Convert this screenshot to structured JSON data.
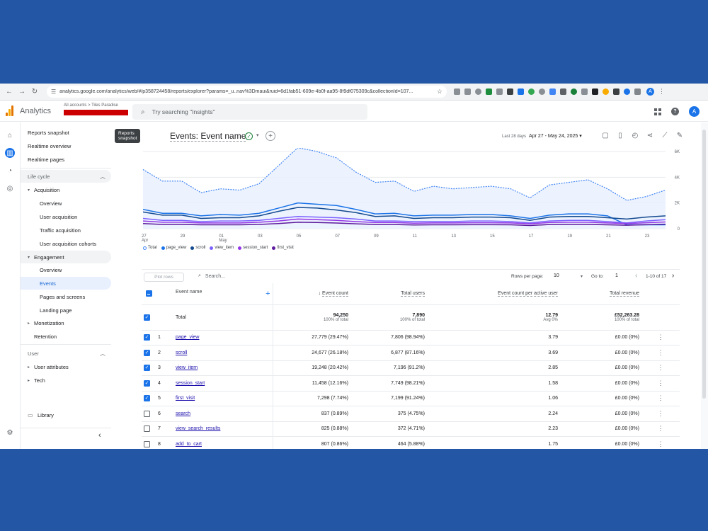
{
  "browser": {
    "url": "analytics.google.com/analytics/web/#/p358724458/reports/explorer?params=_u..nav%3Dmaui&ruid=6d1fab51-609e-4b0f-aa95-8f9df075309c&collectionId=107...",
    "profile_initial": "A"
  },
  "app": {
    "title": "Analytics",
    "account_crumb": "All accounts > Tiles Paradise",
    "search_placeholder": "Try searching \"Insights\"",
    "user_initial": "A"
  },
  "sidenav": {
    "tooltip": "Reports snapshot",
    "items": [
      {
        "label": "Reports snapshot"
      },
      {
        "label": "Realtime overview"
      },
      {
        "label": "Realtime pages"
      },
      {
        "label": "Life cycle"
      },
      {
        "label": "Acquisition"
      },
      {
        "label": "Overview"
      },
      {
        "label": "User acquisition"
      },
      {
        "label": "Traffic acquisition"
      },
      {
        "label": "User acquisition cohorts"
      },
      {
        "label": "Engagement"
      },
      {
        "label": "Overview"
      },
      {
        "label": "Events"
      },
      {
        "label": "Pages and screens"
      },
      {
        "label": "Landing page"
      },
      {
        "label": "Monetization"
      },
      {
        "label": "Retention"
      },
      {
        "label": "User"
      },
      {
        "label": "User attributes"
      },
      {
        "label": "Tech"
      },
      {
        "label": "Library"
      }
    ]
  },
  "report": {
    "title": "Events: Event name",
    "date_label": "Last 28 days",
    "date_range": "Apr 27 - May 24, 2025"
  },
  "chart_data": {
    "type": "line",
    "x": [
      "27 Apr",
      "28",
      "29",
      "30",
      "01 May",
      "02",
      "03",
      "04",
      "05",
      "06",
      "07",
      "08",
      "09",
      "10",
      "11",
      "12",
      "13",
      "14",
      "15",
      "16",
      "17",
      "18",
      "19",
      "20",
      "21",
      "22",
      "23",
      "24"
    ],
    "x_tick_labels": [
      {
        "top": "27",
        "bottom": "Apr"
      },
      {
        "top": "29",
        "bottom": ""
      },
      {
        "top": "01",
        "bottom": "May"
      },
      {
        "top": "03",
        "bottom": ""
      },
      {
        "top": "05",
        "bottom": ""
      },
      {
        "top": "07",
        "bottom": ""
      },
      {
        "top": "09",
        "bottom": ""
      },
      {
        "top": "11",
        "bottom": ""
      },
      {
        "top": "13",
        "bottom": ""
      },
      {
        "top": "15",
        "bottom": ""
      },
      {
        "top": "17",
        "bottom": ""
      },
      {
        "top": "19",
        "bottom": ""
      },
      {
        "top": "21",
        "bottom": ""
      },
      {
        "top": "23",
        "bottom": ""
      }
    ],
    "y_ticks": [
      "6K",
      "4K",
      "2K",
      "0"
    ],
    "ylim": [
      0,
      6000
    ],
    "grid": true,
    "legend_position": "bottom-left",
    "series": [
      {
        "name": "Total",
        "color": "#4285f4",
        "dashed": true,
        "values": [
          4600,
          3700,
          3700,
          2800,
          3100,
          3000,
          3500,
          4900,
          6300,
          6000,
          5500,
          4400,
          3600,
          3700,
          2900,
          3300,
          3100,
          3200,
          3300,
          3100,
          2400,
          3400,
          3600,
          3800,
          3100,
          2200,
          2500,
          3000
        ]
      },
      {
        "name": "page_view",
        "color": "#1a73e8",
        "values": [
          1500,
          1200,
          1200,
          1000,
          1100,
          1050,
          1200,
          1600,
          2000,
          1900,
          1800,
          1500,
          1150,
          1200,
          1000,
          1050,
          1050,
          1100,
          1100,
          1000,
          800,
          1050,
          1150,
          1150,
          1000,
          300,
          300,
          300
        ]
      },
      {
        "name": "scroll",
        "color": "#12498f",
        "values": [
          1300,
          1050,
          1050,
          800,
          850,
          850,
          1000,
          1350,
          1650,
          1600,
          1450,
          1250,
          950,
          1000,
          800,
          850,
          850,
          900,
          900,
          850,
          650,
          900,
          950,
          950,
          850,
          750,
          900,
          1000
        ]
      },
      {
        "name": "view_item",
        "color": "#7b61ff",
        "values": [
          800,
          650,
          650,
          550,
          600,
          600,
          650,
          800,
          950,
          900,
          850,
          750,
          600,
          600,
          550,
          550,
          550,
          600,
          600,
          550,
          450,
          600,
          650,
          650,
          550,
          450,
          600,
          700
        ]
      },
      {
        "name": "session_start",
        "color": "#9334e6",
        "values": [
          600,
          500,
          500,
          450,
          450,
          450,
          500,
          600,
          750,
          700,
          650,
          550,
          480,
          480,
          430,
          450,
          450,
          460,
          460,
          450,
          380,
          480,
          500,
          500,
          450,
          400,
          460,
          520
        ]
      },
      {
        "name": "first_visit",
        "color": "#5e1b9e",
        "values": [
          400,
          330,
          330,
          300,
          300,
          300,
          330,
          400,
          500,
          480,
          440,
          380,
          320,
          320,
          290,
          300,
          300,
          310,
          310,
          300,
          250,
          320,
          330,
          330,
          300,
          270,
          310,
          350
        ]
      }
    ]
  },
  "table": {
    "plot_rows": "Plot rows",
    "search_placeholder": "Search...",
    "rows_per_page_label": "Rows per page:",
    "rows_per_page": "10",
    "goto_label": "Go to:",
    "goto_value": "1",
    "pager_text": "1-10 of 17",
    "columns": {
      "event_name": "Event name",
      "event_count": "Event count",
      "total_users": "Total users",
      "per_user": "Event count per active user",
      "revenue": "Total revenue"
    },
    "totals": {
      "label": "Total",
      "event_count": "94,250",
      "event_count_sub": "100% of total",
      "total_users": "7,890",
      "total_users_sub": "100% of total",
      "per_user": "12.79",
      "per_user_sub": "Avg 0%",
      "revenue": "£52,263.28",
      "revenue_sub": "100% of total"
    },
    "rows": [
      {
        "n": "1",
        "name": "page_view",
        "checked": true,
        "count": "27,779 (29.47%)",
        "users": "7,806 (98.94%)",
        "per": "3.79",
        "rev": "£0.00 (0%)"
      },
      {
        "n": "2",
        "name": "scroll",
        "checked": true,
        "count": "24,677 (26.18%)",
        "users": "6,877 (87.16%)",
        "per": "3.69",
        "rev": "£0.00 (0%)"
      },
      {
        "n": "3",
        "name": "view_item",
        "checked": true,
        "count": "19,248 (20.42%)",
        "users": "7,196 (91.2%)",
        "per": "2.85",
        "rev": "£0.00 (0%)"
      },
      {
        "n": "4",
        "name": "session_start",
        "checked": true,
        "count": "11,458 (12.16%)",
        "users": "7,749 (98.21%)",
        "per": "1.58",
        "rev": "£0.00 (0%)"
      },
      {
        "n": "5",
        "name": "first_visit",
        "checked": true,
        "count": "7,298 (7.74%)",
        "users": "7,199 (91.24%)",
        "per": "1.06",
        "rev": "£0.00 (0%)"
      },
      {
        "n": "6",
        "name": "search",
        "checked": false,
        "count": "837 (0.89%)",
        "users": "375 (4.75%)",
        "per": "2.24",
        "rev": "£0.00 (0%)"
      },
      {
        "n": "7",
        "name": "view_search_results",
        "checked": false,
        "count": "825 (0.88%)",
        "users": "372 (4.71%)",
        "per": "2.23",
        "rev": "£0.00 (0%)"
      },
      {
        "n": "8",
        "name": "add_to_cart",
        "checked": false,
        "count": "807 (0.86%)",
        "users": "464 (5.88%)",
        "per": "1.75",
        "rev": "£0.00 (0%)"
      }
    ]
  }
}
